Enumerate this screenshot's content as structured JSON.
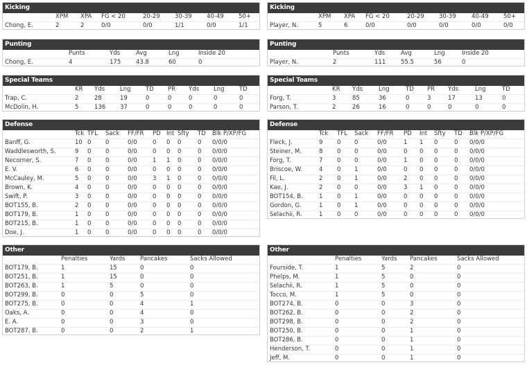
{
  "left": [
    {
      "title": "Kicking",
      "columns": [
        "XPM",
        "XPA",
        "FG < 20",
        "20-29",
        "30-39",
        "40-49",
        "50+"
      ],
      "rows": [
        [
          "Chong, E.",
          "2",
          "2",
          "0/0",
          "0/0",
          "1/1",
          "0/0",
          "1/1"
        ]
      ]
    },
    {
      "title": "Punting",
      "columns": [
        "Punts",
        "Yds",
        "Avg",
        "Lng",
        "Inside 20"
      ],
      "rows": [
        [
          "Chong, E.",
          "4",
          "175",
          "43.8",
          "60",
          "0"
        ]
      ]
    },
    {
      "title": "Special Teams",
      "columns": [
        "KR",
        "Yds",
        "Lng",
        "TD",
        "PR",
        "Yds",
        "Lng",
        "TD"
      ],
      "rows": [
        [
          "Trap, C.",
          "2",
          "28",
          "19",
          "0",
          "0",
          "0",
          "0",
          "0"
        ],
        [
          "McDolin, H.",
          "5",
          "136",
          "37",
          "0",
          "0",
          "0",
          "0",
          "0"
        ]
      ]
    },
    {
      "title": "Defense",
      "columns": [
        "Tck",
        "TFL",
        "Sack",
        "FF/FR",
        "PD",
        "Int",
        "Sfty",
        "TD",
        "Blk P/XP/FG"
      ],
      "rows": [
        [
          "Banff, G.",
          "10",
          "0",
          "0",
          "0/0",
          "0",
          "0",
          "0",
          "0",
          "0/0/0"
        ],
        [
          "Waddlesworth, S.",
          "9",
          "0",
          "0",
          "0/0",
          "0",
          "0",
          "0",
          "0",
          "0/0/0"
        ],
        [
          "Necorner, S.",
          "7",
          "0",
          "0",
          "0/0",
          "1",
          "1",
          "0",
          "0",
          "0/0/0"
        ],
        [
          "E. V.",
          "6",
          "0",
          "0",
          "0/0",
          "0",
          "0",
          "0",
          "0",
          "0/0/0"
        ],
        [
          "McCauley, M.",
          "5",
          "0",
          "0",
          "0/0",
          "3",
          "1",
          "0",
          "0",
          "0/0/0"
        ],
        [
          "Brown, K.",
          "4",
          "0",
          "0",
          "0/0",
          "0",
          "0",
          "0",
          "0",
          "0/0/0"
        ],
        [
          "Swift, P.",
          "3",
          "0",
          "0",
          "0/0",
          "0",
          "0",
          "0",
          "0",
          "0/0/0"
        ],
        [
          "BOT155, B.",
          "2",
          "0",
          "0",
          "0/0",
          "0",
          "0",
          "0",
          "0",
          "0/0/0"
        ],
        [
          "BOT179, B.",
          "1",
          "0",
          "0",
          "0/0",
          "0",
          "0",
          "0",
          "0",
          "0/0/0"
        ],
        [
          "BOT215, B.",
          "1",
          "0",
          "0",
          "0/0",
          "0",
          "0",
          "0",
          "0",
          "0/0/0"
        ],
        [
          "Doe, J.",
          "1",
          "0",
          "0",
          "0/0",
          "0",
          "0",
          "0",
          "0",
          "0/0/0"
        ]
      ]
    },
    {
      "title": "Other",
      "columns": [
        "Penalties",
        "Yards",
        "Pancakes",
        "Sacks Allowed"
      ],
      "rows": [
        [
          "BOT179, B.",
          "1",
          "15",
          "0",
          "0"
        ],
        [
          "BOT251, B.",
          "1",
          "15",
          "0",
          "0"
        ],
        [
          "BOT263, B.",
          "1",
          "5",
          "0",
          "0"
        ],
        [
          "BOT299, B.",
          "0",
          "0",
          "5",
          "0"
        ],
        [
          "BOT275, B.",
          "0",
          "0",
          "4",
          "1"
        ],
        [
          "Oaks, A.",
          "0",
          "0",
          "4",
          "0"
        ],
        [
          "E. A.",
          "0",
          "0",
          "3",
          "0"
        ],
        [
          "BOT287, B.",
          "0",
          "0",
          "2",
          "1"
        ]
      ]
    }
  ],
  "right": [
    {
      "title": "Kicking",
      "columns": [
        "XPM",
        "XPA",
        "FG < 20",
        "20-29",
        "30-39",
        "40-49",
        "50+"
      ],
      "rows": [
        [
          "Player, N.",
          "5",
          "6",
          "0/0",
          "0/0",
          "0/0",
          "0/0",
          "0/0"
        ]
      ]
    },
    {
      "title": "Punting",
      "columns": [
        "Punts",
        "Yds",
        "Avg",
        "Lng",
        "Inside 20"
      ],
      "rows": [
        [
          "Player, N.",
          "2",
          "111",
          "55.5",
          "56",
          "0"
        ]
      ]
    },
    {
      "title": "Special Teams",
      "columns": [
        "KR",
        "Yds",
        "Lng",
        "TD",
        "PR",
        "Yds",
        "Lng",
        "TD"
      ],
      "rows": [
        [
          "Forg, T.",
          "3",
          "85",
          "36",
          "0",
          "3",
          "17",
          "13",
          "0"
        ],
        [
          "Parson, T.",
          "2",
          "26",
          "16",
          "0",
          "0",
          "0",
          "0",
          "0"
        ]
      ]
    },
    {
      "title": "Defense",
      "columns": [
        "Tck",
        "TFL",
        "Sack",
        "FF/FR",
        "PD",
        "Int",
        "Sfty",
        "TD",
        "Blk P/XP/FG"
      ],
      "rows": [
        [
          "Fleck, J.",
          "9",
          "0",
          "0",
          "0/0",
          "1",
          "1",
          "0",
          "0",
          "0/0/0"
        ],
        [
          "Steiner, M.",
          "8",
          "0",
          "0",
          "0/0",
          "0",
          "0",
          "0",
          "0",
          "0/0/0"
        ],
        [
          "Forg, T.",
          "7",
          "0",
          "0",
          "0/0",
          "1",
          "0",
          "0",
          "0",
          "0/0/0"
        ],
        [
          "Briscoe, W.",
          "4",
          "0",
          "1",
          "0/0",
          "0",
          "0",
          "0",
          "0",
          "0/0/0"
        ],
        [
          "Fil, L.",
          "2",
          "0",
          "1",
          "0/0",
          "2",
          "0",
          "0",
          "0",
          "0/0/0"
        ],
        [
          "Kae, J.",
          "2",
          "0",
          "0",
          "0/0",
          "3",
          "1",
          "0",
          "0",
          "0/0/0"
        ],
        [
          "BOT154, B.",
          "1",
          "0",
          "1",
          "0/0",
          "0",
          "0",
          "0",
          "0",
          "0/0/0"
        ],
        [
          "Gordon, G.",
          "1",
          "0",
          "1",
          "0/0",
          "0",
          "0",
          "0",
          "0",
          "0/0/0"
        ],
        [
          "Selachii, R.",
          "1",
          "0",
          "0",
          "0/0",
          "0",
          "0",
          "0",
          "0",
          "0/0/0"
        ]
      ]
    },
    {
      "title": "Other",
      "columns": [
        "Penalties",
        "Yards",
        "Pancakes",
        "Sacks Allowed"
      ],
      "rows": [
        [
          "Fourside, T.",
          "1",
          "5",
          "2",
          "0"
        ],
        [
          "Phelps, M.",
          "1",
          "5",
          "0",
          "0"
        ],
        [
          "Selachii, R.",
          "1",
          "5",
          "0",
          "0"
        ],
        [
          "Tocco, M.",
          "1",
          "5",
          "0",
          "0"
        ],
        [
          "BOT274, B.",
          "0",
          "0",
          "3",
          "0"
        ],
        [
          "BOT262, B.",
          "0",
          "0",
          "2",
          "0"
        ],
        [
          "BOT298, B.",
          "0",
          "0",
          "2",
          "0"
        ],
        [
          "BOT250, B.",
          "0",
          "0",
          "1",
          "0"
        ],
        [
          "BOT286, B.",
          "0",
          "0",
          "1",
          "0"
        ],
        [
          "Henderson, T.",
          "0",
          "0",
          "1",
          "0"
        ],
        [
          "Jeff, M.",
          "0",
          "0",
          "1",
          "0"
        ]
      ]
    }
  ]
}
